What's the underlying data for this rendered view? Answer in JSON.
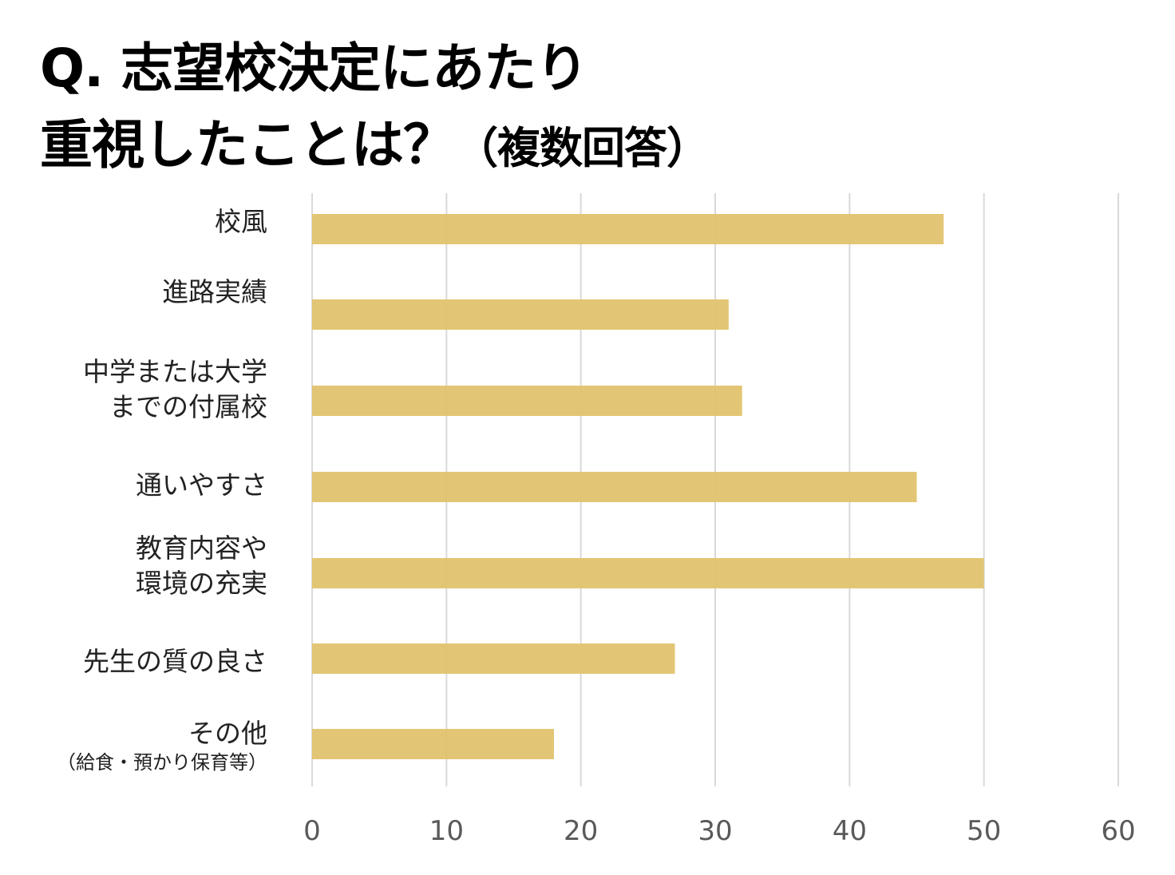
{
  "chart_data": {
    "type": "bar",
    "orientation": "horizontal",
    "title_line1": "Q. 志望校決定にあたり",
    "title_line2": "重視したことは？",
    "title_suffix": "（複数回答）",
    "categories": [
      [
        "校風"
      ],
      [
        "進路実績"
      ],
      [
        "中学または大学",
        "までの付属校"
      ],
      [
        "通いやすさ"
      ],
      [
        "教育内容や",
        "環境の充実"
      ],
      [
        "先生の質の良さ"
      ],
      [
        "その他",
        "（給食・預かり保育等）"
      ]
    ],
    "values": [
      47,
      31,
      32,
      45,
      50,
      27,
      18
    ],
    "xlim": [
      0,
      60
    ],
    "xticks": [
      "0",
      "10",
      "20",
      "30",
      "40",
      "50",
      "60"
    ],
    "grid": true,
    "bar_color": "#E2C36E",
    "grid_color": "#D9D9D9",
    "xlabel": "",
    "ylabel": ""
  }
}
